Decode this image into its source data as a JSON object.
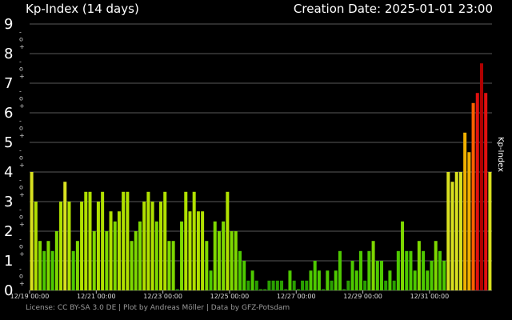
{
  "header": {
    "title": "Kp-Index (14 days)",
    "creation": "Creation Date: 2025-01-01 23:00"
  },
  "footer": "License: CC BY-SA 3.0 DE | Plot by Andreas Möller | Data by GFZ-Potsdam",
  "colors": {
    "background": "#000000",
    "grid": "#5a5a5a",
    "green_dark": "#2aa000",
    "green": "#4ec900",
    "green_light": "#7ed800",
    "lime": "#b0e000",
    "yellow": "#d8e020",
    "gold": "#f0b000",
    "orange": "#ff6000",
    "red": "#e01010",
    "darkred": "#b00000"
  },
  "chart_data": {
    "type": "bar",
    "title": "Kp-Index (14 days)",
    "ylabel": "Kp-Index",
    "ylim": [
      0,
      9
    ],
    "y_ticks": [
      "0",
      "1",
      "2",
      "3",
      "4",
      "5",
      "6",
      "7",
      "8",
      "9"
    ],
    "y_minor_marks": [
      "+",
      "o",
      "-"
    ],
    "grid": true,
    "x_ticks": [
      "12/19 00:00",
      "12/21 00:00",
      "12/23 00:00",
      "12/25 00:00",
      "12/27 00:00",
      "12/29 00:00",
      "12/31 00:00"
    ],
    "interval_hours": 3,
    "values": [
      4.0,
      3.0,
      1.67,
      1.33,
      1.67,
      1.33,
      2.0,
      3.0,
      3.67,
      3.0,
      1.33,
      1.67,
      3.0,
      3.33,
      3.33,
      2.0,
      3.0,
      3.33,
      2.0,
      2.67,
      2.33,
      2.67,
      3.33,
      3.33,
      1.67,
      2.0,
      2.33,
      3.0,
      3.33,
      3.0,
      2.33,
      3.0,
      3.33,
      1.67,
      1.67,
      0.0,
      2.33,
      3.33,
      2.67,
      3.33,
      2.67,
      2.67,
      1.67,
      0.67,
      2.33,
      2.0,
      2.33,
      3.33,
      2.0,
      2.0,
      1.33,
      1.0,
      0.33,
      0.67,
      0.33,
      0.0,
      0.0,
      0.33,
      0.33,
      0.33,
      0.33,
      0.0,
      0.67,
      0.33,
      0.0,
      0.33,
      0.33,
      0.67,
      1.0,
      0.67,
      0.0,
      0.67,
      0.33,
      0.67,
      1.33,
      0.0,
      0.33,
      1.0,
      0.67,
      1.33,
      0.33,
      1.33,
      1.67,
      1.0,
      1.0,
      0.33,
      0.67,
      0.33,
      1.33,
      2.33,
      1.33,
      1.33,
      0.67,
      1.67,
      1.33,
      0.67,
      1.0,
      1.67,
      1.33,
      1.0,
      4.0,
      3.67,
      4.0,
      4.0,
      5.33,
      4.67,
      6.33,
      6.67,
      7.67,
      6.67,
      4.0
    ]
  }
}
